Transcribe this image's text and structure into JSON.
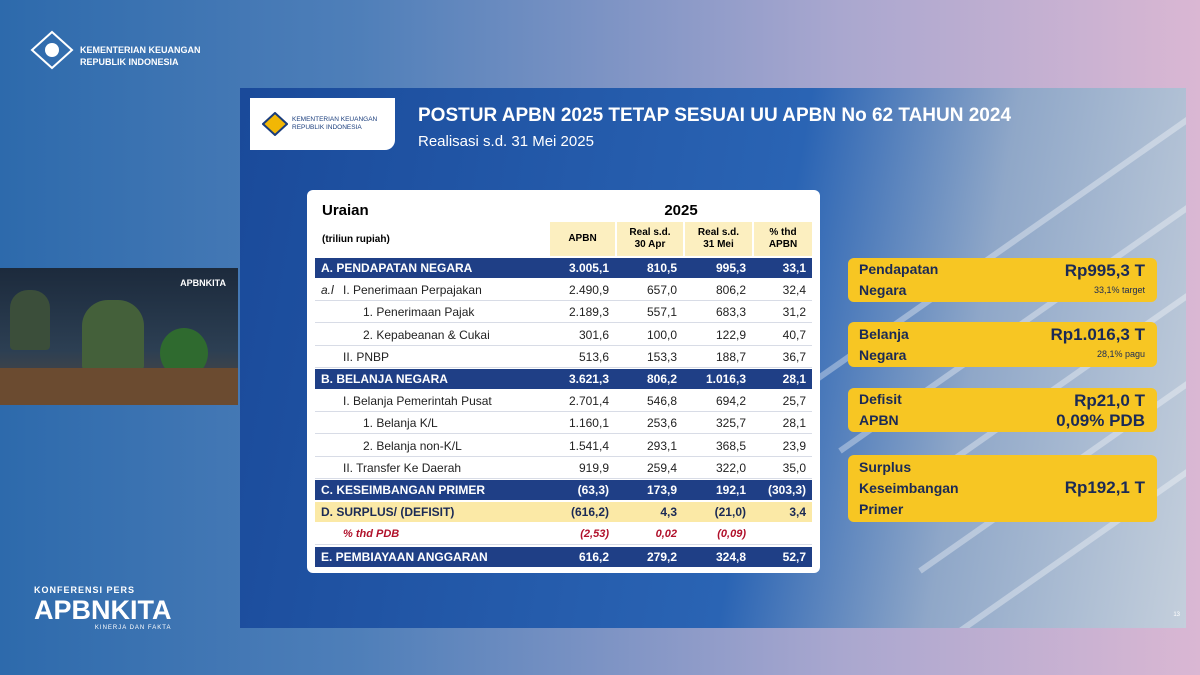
{
  "header": {
    "ministry": "KEMENTERIAN KEUANGAN",
    "republic": "REPUBLIK INDONESIA"
  },
  "video": {
    "logo": "APBNKITA"
  },
  "slide": {
    "logo": {
      "ministry": "KEMENTERIAN KEUANGAN",
      "republic": "REPUBLIK INDONESIA"
    },
    "title": "POSTUR APBN 2025 TETAP SESUAI UU APBN No 62 TAHUN 2024",
    "subtitle": "Realisasi s.d. 31 Mei 2025",
    "table": {
      "head": {
        "label": "Uraian",
        "unit": "(triliun rupiah)",
        "year": "2025",
        "columns": [
          [
            "APBN"
          ],
          [
            "Real s.d.",
            "30 Apr"
          ],
          [
            "Real s.d.",
            "31 Mei"
          ],
          [
            "% thd",
            "APBN"
          ]
        ]
      },
      "rows": [
        {
          "label": "A. PENDAPATAN NEGARA",
          "values": [
            "3.005,1",
            "810,5",
            "995,3",
            "33,1"
          ]
        },
        {
          "marker": "a.l",
          "label": "I. Penerimaan Perpajakan",
          "values": [
            "2.490,9",
            "657,0",
            "806,2",
            "32,4"
          ]
        },
        {
          "label": "1. Penerimaan Pajak",
          "values": [
            "2.189,3",
            "557,1",
            "683,3",
            "31,2"
          ]
        },
        {
          "label": "2. Kepabeanan & Cukai",
          "values": [
            "301,6",
            "100,0",
            "122,9",
            "40,7"
          ]
        },
        {
          "label": "II. PNBP",
          "values": [
            "513,6",
            "153,3",
            "188,7",
            "36,7"
          ]
        },
        {
          "label": "B. BELANJA NEGARA",
          "values": [
            "3.621,3",
            "806,2",
            "1.016,3",
            "28,1"
          ]
        },
        {
          "label": "I. Belanja Pemerintah Pusat",
          "values": [
            "2.701,4",
            "546,8",
            "694,2",
            "25,7"
          ]
        },
        {
          "label": "1. Belanja K/L",
          "values": [
            "1.160,1",
            "253,6",
            "325,7",
            "28,1"
          ]
        },
        {
          "label": "2. Belanja non-K/L",
          "values": [
            "1.541,4",
            "293,1",
            "368,5",
            "23,9"
          ]
        },
        {
          "label": "II. Transfer Ke Daerah",
          "values": [
            "919,9",
            "259,4",
            "322,0",
            "35,0"
          ]
        },
        {
          "label": "C. KESEIMBANGAN PRIMER",
          "values": [
            "(63,3)",
            "173,9",
            "192,1",
            "(303,3)"
          ]
        },
        {
          "label": "D. SURPLUS/ (DEFISIT)",
          "values": [
            "(616,2)",
            "4,3",
            "(21,0)",
            "3,4"
          ]
        },
        {
          "label": "% thd PDB",
          "values": [
            "(2,53)",
            "0,02",
            "(0,09)"
          ]
        },
        {
          "label": "E. PEMBIAYAAN ANGGARAN",
          "values": [
            "616,2",
            "279,2",
            "324,8",
            "52,7"
          ]
        }
      ]
    },
    "cards": [
      {
        "label": [
          "Pendapatan",
          "Negara"
        ],
        "value": "Rp995,3 T",
        "note": "33,1% target"
      },
      {
        "label": [
          "Belanja",
          "Negara"
        ],
        "value": "Rp1.016,3 T",
        "note": "28,1% pagu"
      },
      {
        "label": [
          "Defisit",
          "APBN"
        ],
        "value": "Rp21,0 T",
        "note": "0,09% PDB"
      },
      {
        "label": [
          "Surplus",
          "Keseimbangan",
          "Primer"
        ],
        "value": "Rp192,1 T"
      }
    ],
    "page_number": "13"
  },
  "footer": {
    "event": "KONFERENSI PERS",
    "brand": "APBNKITA",
    "tagline": "KINERJA DAN FAKTA"
  }
}
